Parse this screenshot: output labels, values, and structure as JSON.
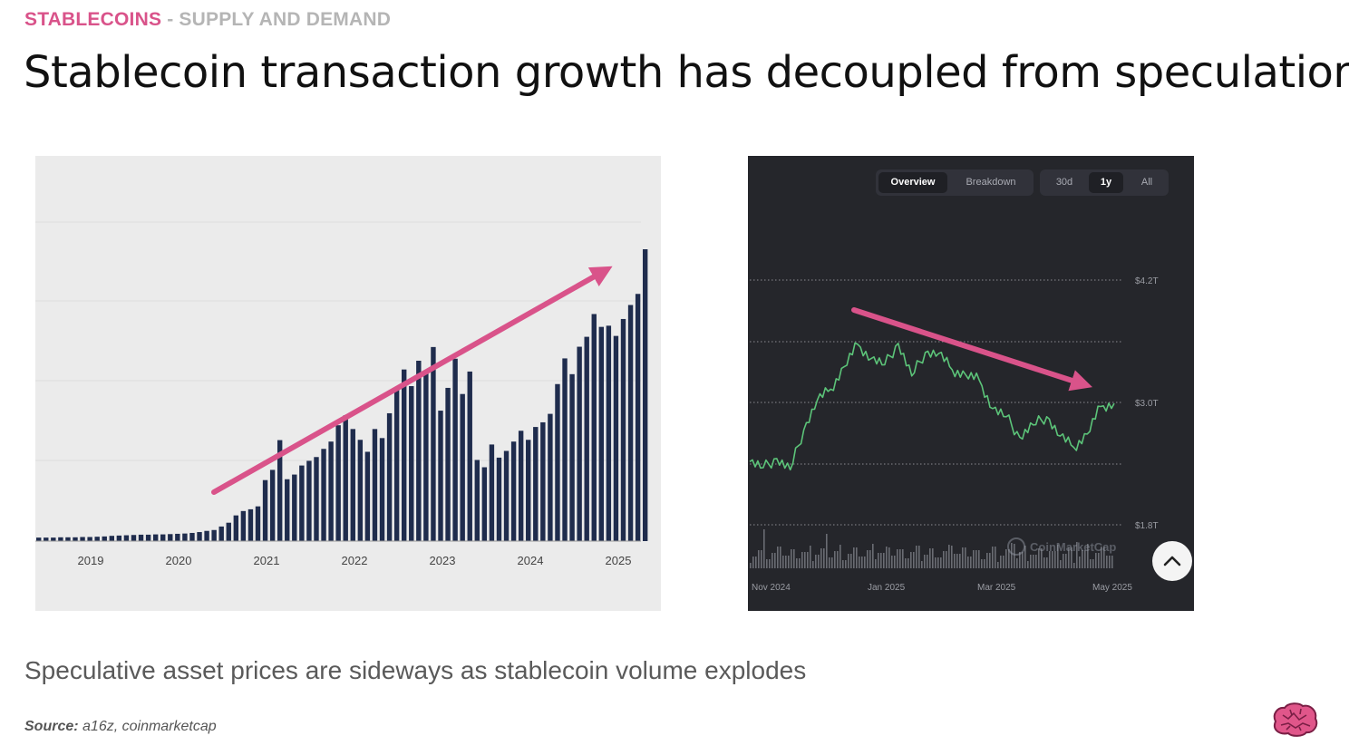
{
  "header": {
    "eyebrow_highlight": "STABLECOINS",
    "eyebrow_rest": " - SUPPLY AND DEMAND",
    "title": "Stablecoin transaction growth has decoupled from speculation"
  },
  "subtitle": "Speculative asset prices are sideways as stablecoin volume explodes",
  "source": {
    "label": "Source:",
    "text": " a16z, coinmarketcap"
  },
  "colors": {
    "accent_pink": "#d9538a",
    "bar_navy": "#1f2c4d",
    "line_green": "#5cc479",
    "dark_panel": "#25262b"
  },
  "right_controls": {
    "tabs": [
      {
        "label": "Overview",
        "active": true
      },
      {
        "label": "Breakdown",
        "active": false
      }
    ],
    "ranges": [
      {
        "label": "30d",
        "active": false
      },
      {
        "label": "1y",
        "active": true
      },
      {
        "label": "All",
        "active": false
      }
    ],
    "watermark": "CoinMarketCap",
    "scroll_button_icon": "chevron-up-icon"
  },
  "chart_data": [
    {
      "type": "bar",
      "title": "",
      "xlabel": "",
      "ylabel": "",
      "x_tick_labels": [
        "2019",
        "2020",
        "2021",
        "2022",
        "2023",
        "2024",
        "2025"
      ],
      "grid": true,
      "y_axis_labels_shown": false,
      "trend_arrow": "up",
      "values_relative_to_max": [
        1.2,
        1.2,
        1.2,
        1.3,
        1.3,
        1.3,
        1.4,
        1.4,
        1.5,
        1.6,
        1.8,
        1.9,
        2.0,
        2.1,
        2.2,
        2.2,
        2.3,
        2.3,
        2.4,
        2.5,
        2.6,
        2.8,
        3.1,
        3.5,
        3.8,
        5.0,
        6.3,
        8.8,
        10.3,
        10.9,
        11.9,
        20.9,
        24.4,
        34.6,
        21.2,
        22.8,
        25.9,
        27.5,
        28.8,
        31.6,
        34.1,
        39.7,
        43.1,
        38.4,
        34.7,
        30.6,
        38.4,
        35.3,
        43.8,
        52.5,
        58.8,
        53.1,
        61.8,
        57.5,
        66.5,
        44.7,
        52.5,
        62.5,
        50.4,
        58.1,
        27.8,
        25.3,
        33.1,
        28.6,
        30.9,
        34.1,
        37.8,
        34.7,
        39.1,
        40.7,
        43.6,
        53.8,
        62.6,
        57.2,
        66.6,
        70.0,
        77.8,
        73.4,
        73.8,
        70.3,
        76.1,
        80.9,
        84.7,
        100.0
      ]
    },
    {
      "type": "line",
      "title": "",
      "xlabel": "",
      "ylabel": "",
      "x_tick_labels": [
        "Nov 2024",
        "Jan 2025",
        "Mar 2025",
        "May 2025"
      ],
      "y_tick_labels": [
        "$1.8T",
        "$3.0T",
        "$4.2T"
      ],
      "ylim": [
        1.8,
        4.2
      ],
      "grid": true,
      "trend_arrow": "down",
      "series": [
        {
          "x": [
            "2024-10-28",
            "2024-11-04",
            "2024-11-11",
            "2024-11-18",
            "2024-11-25",
            "2024-12-02",
            "2024-12-09",
            "2024-12-16",
            "2024-12-23",
            "2024-12-30",
            "2025-01-06",
            "2025-01-13",
            "2025-01-20",
            "2025-01-27",
            "2025-02-03",
            "2025-02-10",
            "2025-02-17",
            "2025-02-24",
            "2025-03-03",
            "2025-03-10",
            "2025-03-17",
            "2025-03-24",
            "2025-03-31",
            "2025-04-07",
            "2025-04-14",
            "2025-04-21",
            "2025-04-28",
            "2025-05-05"
          ],
          "values": [
            2.42,
            2.36,
            2.45,
            2.34,
            2.73,
            3.02,
            3.13,
            3.35,
            3.57,
            3.43,
            3.37,
            3.58,
            3.26,
            3.49,
            3.48,
            3.32,
            3.27,
            3.22,
            2.94,
            2.86,
            2.66,
            2.78,
            2.86,
            2.67,
            2.56,
            2.69,
            2.96,
            2.99
          ]
        }
      ],
      "volume_bars_shown": true
    }
  ]
}
